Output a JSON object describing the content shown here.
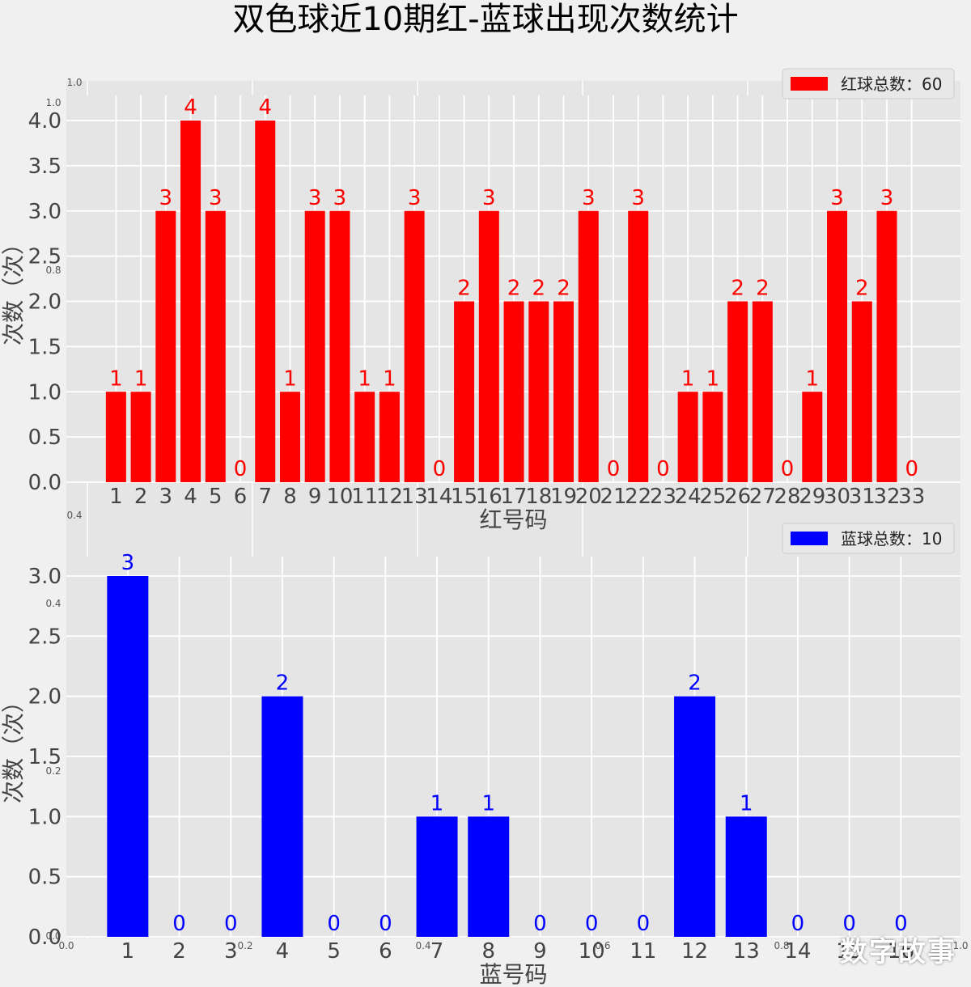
{
  "title": "双色球近10期红-蓝球出现次数统计",
  "colors": {
    "red": "#ff0000",
    "blue": "#0000ff",
    "panel": "#e5e5e5",
    "grid": "#ffffff",
    "figure_bg": "#f0f0f0"
  },
  "chart_data": [
    {
      "type": "bar",
      "categories": [
        "1",
        "2",
        "3",
        "4",
        "5",
        "6",
        "7",
        "8",
        "9",
        "10",
        "11",
        "12",
        "13",
        "14",
        "15",
        "16",
        "17",
        "18",
        "19",
        "20",
        "21",
        "22",
        "23",
        "24",
        "25",
        "26",
        "27",
        "28",
        "29",
        "30",
        "31",
        "32",
        "33"
      ],
      "values": [
        1,
        1,
        3,
        4,
        3,
        0,
        4,
        1,
        3,
        3,
        1,
        1,
        3,
        0,
        2,
        3,
        2,
        2,
        2,
        3,
        0,
        3,
        0,
        1,
        1,
        2,
        2,
        0,
        1,
        3,
        2,
        3,
        0
      ],
      "series": [
        {
          "name": "红球总数：60",
          "values": [
            1,
            1,
            3,
            4,
            3,
            0,
            4,
            1,
            3,
            3,
            1,
            1,
            3,
            0,
            2,
            3,
            2,
            2,
            2,
            3,
            0,
            3,
            0,
            1,
            1,
            2,
            2,
            0,
            1,
            3,
            2,
            3,
            0
          ]
        }
      ],
      "xlabel": "红号码",
      "ylabel": "次数（次）",
      "ylim": [
        0,
        4
      ],
      "yticks": [
        "0.0",
        "0.5",
        "1.0",
        "1.5",
        "2.0",
        "2.5",
        "3.0",
        "3.5",
        "4.0"
      ],
      "legend": "top-right",
      "grid": true,
      "color": "#ff0000"
    },
    {
      "type": "bar",
      "categories": [
        "1",
        "2",
        "3",
        "4",
        "5",
        "6",
        "7",
        "8",
        "9",
        "10",
        "11",
        "12",
        "13",
        "14",
        "15",
        "16"
      ],
      "values": [
        3,
        0,
        0,
        2,
        0,
        0,
        1,
        1,
        0,
        0,
        0,
        2,
        1,
        0,
        0,
        0
      ],
      "series": [
        {
          "name": "蓝球总数：10",
          "values": [
            3,
            0,
            0,
            2,
            0,
            0,
            1,
            1,
            0,
            0,
            0,
            2,
            1,
            0,
            0,
            0
          ]
        }
      ],
      "xlabel": "蓝号码",
      "ylabel": "次数（次）",
      "ylim": [
        0,
        3
      ],
      "yticks": [
        "0.0",
        "0.5",
        "1.0",
        "1.5",
        "2.0",
        "2.5",
        "3.0"
      ],
      "legend": "top-right",
      "grid": true,
      "color": "#0000ff"
    }
  ],
  "ghost_axis": {
    "x_ticks": [
      "0.0",
      "0.2",
      "0.4",
      "0.6",
      "0.8",
      "1.0"
    ],
    "y_ticks": [
      "1.0",
      "1.0",
      "0.8",
      "0.4",
      "0.4",
      "0.2",
      "0.0"
    ]
  },
  "watermark": "数字故事"
}
